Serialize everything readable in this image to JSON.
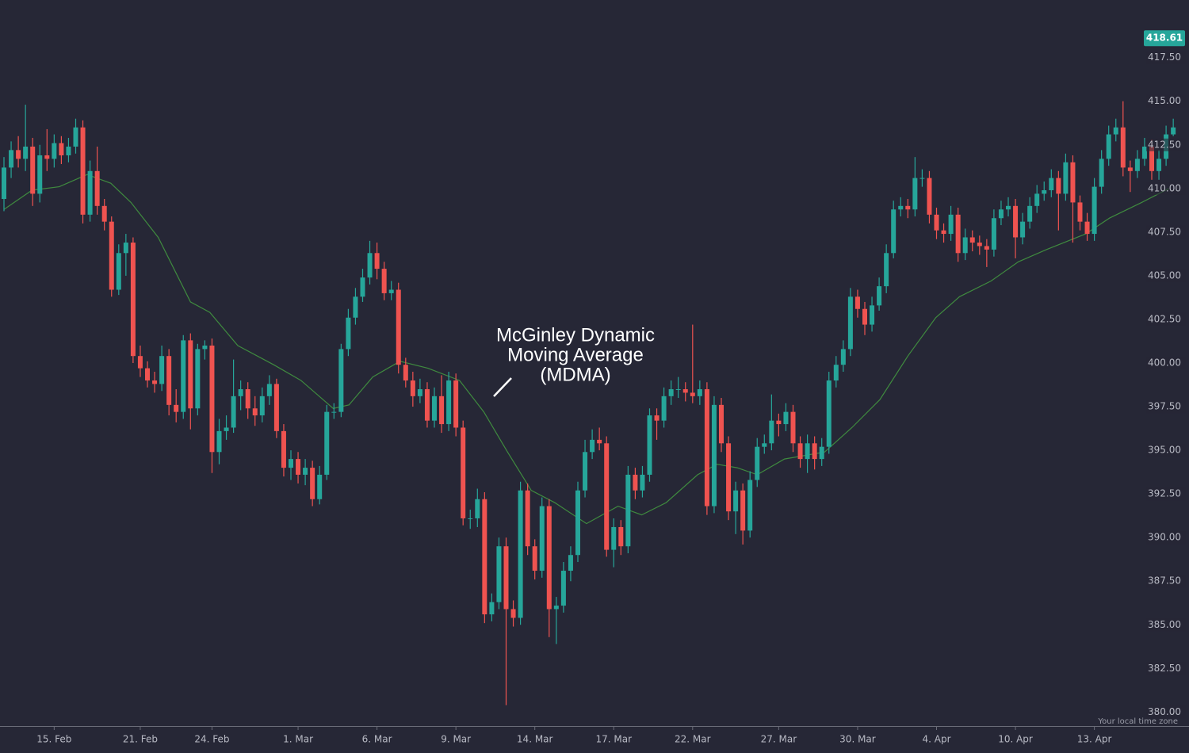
{
  "chart_data": {
    "type": "candlestick",
    "annotation": [
      "McGinley Dynamic",
      "Moving Average",
      "(MDMA)"
    ],
    "time_zone_label": "Your local time zone",
    "last_price": 418.61,
    "up_color": "#26a69a",
    "down_color": "#ef5350",
    "ylim": [
      379.2,
      420.8
    ],
    "yticks": [
      {
        "value": 380,
        "label": "380.00"
      },
      {
        "value": 382.5,
        "label": "382.50"
      },
      {
        "value": 385,
        "label": "385.00"
      },
      {
        "value": 387.5,
        "label": "387.50"
      },
      {
        "value": 390,
        "label": "390.00"
      },
      {
        "value": 392.5,
        "label": "392.50"
      },
      {
        "value": 395,
        "label": "395.00"
      },
      {
        "value": 397.5,
        "label": "397.50"
      },
      {
        "value": 400,
        "label": "400.00"
      },
      {
        "value": 402.5,
        "label": "402.50"
      },
      {
        "value": 405,
        "label": "405.00"
      },
      {
        "value": 407.5,
        "label": "407.50"
      },
      {
        "value": 410,
        "label": "410.00"
      },
      {
        "value": 412.5,
        "label": "412.50"
      },
      {
        "value": 415,
        "label": "415.00"
      },
      {
        "value": 417.5,
        "label": "417.50"
      }
    ],
    "categories": [
      null,
      null,
      null,
      null,
      null,
      null,
      null,
      "15. Feb",
      null,
      null,
      null,
      null,
      null,
      null,
      null,
      null,
      null,
      null,
      null,
      "21. Feb",
      null,
      null,
      null,
      null,
      null,
      null,
      null,
      null,
      null,
      "24. Feb",
      null,
      null,
      null,
      null,
      null,
      null,
      null,
      null,
      null,
      null,
      null,
      "1. Mar",
      null,
      null,
      null,
      null,
      null,
      null,
      null,
      null,
      null,
      null,
      "6. Mar",
      null,
      null,
      null,
      null,
      null,
      null,
      null,
      null,
      null,
      null,
      "9. Mar",
      null,
      null,
      null,
      null,
      null,
      null,
      null,
      null,
      null,
      null,
      "14. Mar",
      null,
      null,
      null,
      null,
      null,
      null,
      null,
      null,
      null,
      null,
      "17. Mar",
      null,
      null,
      null,
      null,
      null,
      null,
      null,
      null,
      null,
      null,
      "22. Mar",
      null,
      null,
      null,
      null,
      null,
      null,
      null,
      null,
      null,
      null,
      null,
      "27. Mar",
      null,
      null,
      null,
      null,
      null,
      null,
      null,
      null,
      null,
      null,
      "30. Mar",
      null,
      null,
      null,
      null,
      null,
      null,
      null,
      null,
      null,
      null,
      "4. Apr",
      null,
      null,
      null,
      null,
      null,
      null,
      null,
      null,
      null,
      null,
      "10. Apr",
      null,
      null,
      null,
      null,
      null,
      null,
      null,
      null,
      null,
      null,
      "13. Apr",
      null,
      null,
      null,
      null,
      null,
      null,
      null,
      null,
      null,
      null,
      null
    ],
    "ohlc": [
      [
        409.4,
        411.8,
        408.7,
        411.2
      ],
      [
        411.2,
        412.7,
        410.6,
        412.2
      ],
      [
        412.2,
        413.0,
        411.2,
        411.7
      ],
      [
        411.7,
        414.8,
        411.0,
        412.4
      ],
      [
        412.4,
        412.9,
        409.0,
        409.7
      ],
      [
        409.7,
        412.5,
        409.2,
        411.9
      ],
      [
        411.9,
        413.4,
        411.0,
        411.7
      ],
      [
        411.7,
        413.1,
        411.2,
        412.6
      ],
      [
        412.6,
        413.0,
        411.4,
        411.9
      ],
      [
        411.9,
        412.9,
        411.5,
        412.4
      ],
      [
        412.4,
        414.0,
        412.0,
        413.5
      ],
      [
        413.5,
        413.9,
        408.0,
        408.5
      ],
      [
        408.5,
        411.6,
        408.1,
        411.0
      ],
      [
        411.0,
        412.4,
        408.5,
        409.0
      ],
      [
        409.0,
        409.4,
        407.6,
        408.1
      ],
      [
        408.1,
        408.4,
        403.8,
        404.2
      ],
      [
        404.2,
        406.8,
        403.9,
        406.3
      ],
      [
        406.3,
        407.4,
        405.0,
        406.9
      ],
      [
        406.9,
        407.2,
        400.0,
        400.4
      ],
      [
        400.4,
        401.0,
        399.2,
        399.7
      ],
      [
        399.7,
        400.1,
        398.6,
        399.0
      ],
      [
        399.0,
        399.5,
        398.3,
        398.8
      ],
      [
        398.8,
        401.0,
        398.4,
        400.4
      ],
      [
        400.4,
        400.8,
        397.0,
        397.6
      ],
      [
        397.6,
        398.5,
        396.6,
        397.2
      ],
      [
        397.2,
        401.6,
        396.8,
        401.3
      ],
      [
        401.3,
        401.7,
        396.2,
        397.4
      ],
      [
        397.4,
        401.1,
        397.0,
        400.8
      ],
      [
        400.8,
        401.3,
        400.2,
        401.0
      ],
      [
        401.0,
        401.4,
        393.7,
        394.9
      ],
      [
        394.9,
        396.8,
        394.2,
        396.1
      ],
      [
        396.1,
        397.0,
        395.6,
        396.3
      ],
      [
        396.3,
        400.2,
        396.0,
        398.1
      ],
      [
        398.1,
        399.0,
        397.3,
        398.5
      ],
      [
        398.5,
        398.9,
        396.8,
        397.4
      ],
      [
        397.4,
        398.1,
        396.4,
        397.0
      ],
      [
        397.0,
        398.6,
        396.6,
        398.1
      ],
      [
        398.1,
        399.3,
        397.6,
        398.8
      ],
      [
        398.8,
        399.1,
        395.7,
        396.1
      ],
      [
        396.1,
        396.5,
        393.5,
        394.0
      ],
      [
        394.0,
        395.0,
        393.3,
        394.5
      ],
      [
        394.5,
        394.9,
        393.1,
        393.6
      ],
      [
        393.6,
        394.5,
        393.0,
        394.0
      ],
      [
        394.0,
        394.4,
        391.8,
        392.2
      ],
      [
        392.2,
        394.1,
        391.9,
        393.6
      ],
      [
        393.6,
        397.6,
        393.3,
        397.2
      ],
      [
        397.2,
        397.7,
        396.8,
        397.2
      ],
      [
        397.2,
        401.1,
        396.9,
        400.8
      ],
      [
        400.8,
        403.1,
        400.4,
        402.6
      ],
      [
        402.6,
        404.3,
        402.2,
        403.8
      ],
      [
        403.8,
        405.4,
        403.5,
        404.9
      ],
      [
        404.9,
        407.0,
        404.5,
        406.3
      ],
      [
        406.3,
        406.9,
        404.8,
        405.4
      ],
      [
        405.4,
        405.8,
        403.6,
        404.0
      ],
      [
        404.0,
        404.7,
        403.6,
        404.2
      ],
      [
        404.2,
        404.6,
        399.4,
        399.9
      ],
      [
        399.9,
        400.3,
        398.6,
        399.0
      ],
      [
        399.0,
        399.5,
        397.5,
        398.1
      ],
      [
        398.1,
        399.1,
        397.7,
        398.5
      ],
      [
        398.5,
        398.9,
        396.3,
        396.7
      ],
      [
        396.7,
        398.6,
        396.3,
        398.1
      ],
      [
        398.1,
        399.3,
        396.0,
        396.5
      ],
      [
        396.5,
        399.5,
        396.1,
        399.0
      ],
      [
        399.0,
        399.4,
        395.8,
        396.3
      ],
      [
        396.3,
        396.7,
        390.7,
        391.1
      ],
      [
        391.1,
        391.6,
        390.5,
        391.1
      ],
      [
        391.1,
        392.8,
        390.6,
        392.2
      ],
      [
        392.2,
        392.6,
        385.1,
        385.6
      ],
      [
        385.6,
        386.8,
        385.2,
        386.3
      ],
      [
        386.3,
        390.0,
        385.9,
        389.5
      ],
      [
        389.5,
        390.0,
        380.4,
        385.9
      ],
      [
        385.9,
        386.4,
        384.9,
        385.4
      ],
      [
        385.4,
        393.2,
        385.0,
        392.7
      ],
      [
        392.7,
        393.1,
        389.0,
        389.5
      ],
      [
        389.5,
        389.9,
        387.6,
        388.1
      ],
      [
        388.1,
        392.3,
        387.7,
        391.8
      ],
      [
        391.8,
        392.2,
        384.3,
        385.9
      ],
      [
        385.9,
        386.6,
        383.9,
        386.1
      ],
      [
        386.1,
        388.6,
        385.7,
        388.1
      ],
      [
        388.1,
        389.5,
        387.5,
        389.0
      ],
      [
        389.0,
        393.2,
        388.6,
        392.7
      ],
      [
        392.7,
        395.6,
        392.3,
        394.9
      ],
      [
        394.9,
        396.2,
        394.5,
        395.6
      ],
      [
        395.6,
        396.3,
        395.0,
        395.4
      ],
      [
        395.4,
        395.8,
        388.9,
        389.3
      ],
      [
        389.3,
        391.1,
        388.3,
        390.6
      ],
      [
        390.6,
        391.0,
        389.0,
        389.5
      ],
      [
        389.5,
        394.1,
        389.1,
        393.6
      ],
      [
        393.6,
        394.0,
        392.2,
        392.7
      ],
      [
        392.7,
        394.1,
        392.3,
        393.6
      ],
      [
        393.6,
        397.4,
        393.2,
        397.0
      ],
      [
        397.0,
        397.4,
        395.6,
        396.7
      ],
      [
        396.7,
        398.6,
        396.3,
        398.1
      ],
      [
        398.1,
        399.0,
        397.6,
        398.5
      ],
      [
        398.5,
        399.2,
        398.0,
        398.5
      ],
      [
        398.5,
        398.9,
        397.8,
        398.3
      ],
      [
        398.3,
        402.2,
        397.7,
        398.1
      ],
      [
        398.1,
        399.0,
        397.6,
        398.5
      ],
      [
        398.5,
        398.9,
        391.3,
        391.8
      ],
      [
        391.8,
        398.1,
        391.4,
        397.6
      ],
      [
        397.6,
        398.0,
        394.9,
        395.4
      ],
      [
        395.4,
        395.8,
        391.0,
        391.5
      ],
      [
        391.5,
        393.2,
        390.2,
        392.7
      ],
      [
        392.7,
        393.1,
        389.6,
        390.4
      ],
      [
        390.4,
        393.8,
        390.0,
        393.3
      ],
      [
        393.3,
        395.7,
        392.9,
        395.2
      ],
      [
        395.2,
        395.9,
        394.8,
        395.4
      ],
      [
        395.4,
        398.2,
        395.0,
        396.7
      ],
      [
        396.7,
        397.1,
        395.8,
        396.5
      ],
      [
        396.5,
        397.7,
        396.1,
        397.2
      ],
      [
        397.2,
        397.6,
        394.9,
        395.4
      ],
      [
        395.4,
        395.8,
        394.0,
        394.5
      ],
      [
        394.5,
        395.9,
        393.7,
        395.4
      ],
      [
        395.4,
        395.8,
        393.9,
        394.5
      ],
      [
        394.5,
        395.7,
        394.1,
        395.2
      ],
      [
        395.2,
        399.5,
        394.8,
        399.0
      ],
      [
        399.0,
        400.4,
        398.6,
        399.9
      ],
      [
        399.9,
        401.3,
        399.5,
        400.8
      ],
      [
        400.8,
        404.3,
        400.4,
        403.8
      ],
      [
        403.8,
        404.2,
        402.6,
        403.1
      ],
      [
        403.1,
        403.5,
        401.6,
        402.2
      ],
      [
        402.2,
        403.8,
        401.8,
        403.3
      ],
      [
        403.3,
        404.9,
        403.0,
        404.4
      ],
      [
        404.4,
        406.8,
        404.0,
        406.3
      ],
      [
        406.3,
        409.3,
        406.0,
        408.8
      ],
      [
        408.8,
        409.5,
        408.4,
        409.0
      ],
      [
        409.0,
        409.4,
        408.3,
        408.8
      ],
      [
        408.8,
        411.8,
        408.4,
        410.6
      ],
      [
        410.6,
        411.1,
        410.1,
        410.6
      ],
      [
        410.6,
        411.0,
        408.0,
        408.5
      ],
      [
        408.5,
        408.9,
        407.1,
        407.6
      ],
      [
        407.6,
        408.0,
        406.9,
        407.4
      ],
      [
        407.4,
        409.0,
        407.0,
        408.5
      ],
      [
        408.5,
        408.9,
        405.8,
        406.3
      ],
      [
        406.3,
        407.7,
        405.9,
        407.2
      ],
      [
        407.2,
        407.6,
        406.4,
        406.9
      ],
      [
        406.9,
        407.3,
        406.2,
        406.7
      ],
      [
        406.7,
        407.1,
        405.5,
        406.5
      ],
      [
        406.5,
        408.8,
        406.1,
        408.3
      ],
      [
        408.3,
        409.3,
        407.9,
        408.8
      ],
      [
        408.8,
        409.5,
        408.4,
        409.0
      ],
      [
        409.0,
        409.4,
        406.0,
        407.2
      ],
      [
        407.2,
        408.6,
        406.8,
        408.1
      ],
      [
        408.1,
        409.5,
        407.7,
        409.0
      ],
      [
        409.0,
        410.2,
        408.6,
        409.7
      ],
      [
        409.7,
        410.4,
        409.3,
        409.9
      ],
      [
        409.9,
        411.1,
        409.5,
        410.6
      ],
      [
        410.6,
        411.0,
        407.6,
        409.7
      ],
      [
        409.7,
        412.0,
        409.3,
        411.5
      ],
      [
        411.5,
        411.9,
        406.9,
        409.2
      ],
      [
        409.2,
        409.6,
        407.6,
        408.1
      ],
      [
        408.1,
        408.6,
        407.0,
        407.4
      ],
      [
        407.4,
        410.6,
        407.0,
        410.1
      ],
      [
        410.1,
        412.2,
        409.7,
        411.7
      ],
      [
        411.7,
        413.6,
        411.3,
        413.1
      ],
      [
        413.1,
        414.0,
        412.7,
        413.5
      ],
      [
        413.5,
        415.0,
        410.7,
        411.2
      ],
      [
        411.2,
        411.6,
        409.8,
        411.0
      ],
      [
        411.0,
        412.2,
        410.6,
        411.7
      ],
      [
        411.7,
        412.9,
        411.3,
        412.4
      ],
      [
        412.4,
        412.8,
        410.5,
        411.0
      ],
      [
        411.0,
        412.2,
        410.5,
        411.7
      ],
      [
        411.7,
        413.6,
        411.3,
        413.1
      ],
      [
        413.1,
        414.0,
        413.0,
        413.5
      ]
    ],
    "ma": {
      "color": "#3f8a3f",
      "x": [
        0,
        3.9,
        7.7,
        11.6,
        14.9,
        17.7,
        21.5,
        26.0,
        28.7,
        32.6,
        37.6,
        41.4,
        45.9,
        48.1,
        51.4,
        55.2,
        59.1,
        63.5,
        66.9,
        70.2,
        73.5,
        76.8,
        81.2,
        85.6,
        88.9,
        92.3,
        96.7,
        99.4,
        102.2,
        105.0,
        108.8,
        114.4,
        118.2,
        122.1,
        126.0,
        129.9,
        133.2,
        137.6,
        141.4,
        145.3,
        150.8,
        154.1,
        158.6,
        162.4
      ],
      "values": [
        408.8,
        409.9,
        410.1,
        410.8,
        410.3,
        409.2,
        407.2,
        403.5,
        402.9,
        401.0,
        399.9,
        399.0,
        397.4,
        397.6,
        399.2,
        400.1,
        399.7,
        399.0,
        397.2,
        394.9,
        392.7,
        392.0,
        390.8,
        391.8,
        391.3,
        392.0,
        393.6,
        394.2,
        394.0,
        393.6,
        394.5,
        394.9,
        396.3,
        397.9,
        400.4,
        402.6,
        403.8,
        404.7,
        405.8,
        406.5,
        407.4,
        408.3,
        409.2,
        410.0
      ]
    }
  }
}
